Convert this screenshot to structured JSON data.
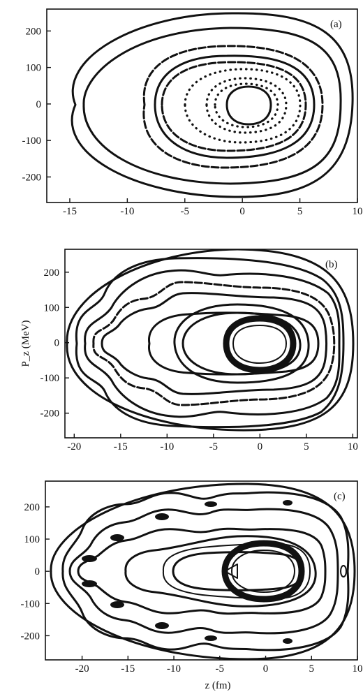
{
  "chart_data": [
    {
      "type": "phase-space contour",
      "panel_label": "(a)",
      "xlim": [
        -17,
        10
      ],
      "ylim": [
        -270,
        260
      ],
      "x_ticks": [
        -15,
        -10,
        -5,
        0,
        5,
        10
      ],
      "y_ticks": [
        200,
        100,
        0,
        -100,
        -200
      ],
      "x_tick_labels": [
        "-15",
        "-10",
        "-5",
        "0",
        "5",
        "10"
      ],
      "y_tick_labels": [
        "200",
        "100",
        "0",
        "-100",
        "-200"
      ],
      "xlabel": "",
      "ylabel": ""
    },
    {
      "type": "phase-space contour",
      "panel_label": "(b)",
      "xlim": [
        -21,
        10.5
      ],
      "ylim": [
        -270,
        265
      ],
      "x_ticks": [
        -20,
        -15,
        -10,
        -5,
        0,
        5,
        10
      ],
      "y_ticks": [
        200,
        100,
        0,
        -100,
        -200
      ],
      "x_tick_labels": [
        "-20",
        "-15",
        "-10",
        "-5",
        "0",
        "5",
        "10"
      ],
      "y_tick_labels": [
        "200",
        "100",
        "0",
        "-100",
        "-200"
      ],
      "xlabel": "",
      "ylabel": "P_z (MeV)"
    },
    {
      "type": "phase-space contour",
      "panel_label": "(c)",
      "xlim": [
        -24,
        10
      ],
      "ylim": [
        -275,
        280
      ],
      "x_ticks": [
        -20,
        -15,
        -10,
        -5,
        0,
        5,
        10
      ],
      "y_ticks": [
        200,
        100,
        0,
        -100,
        -200
      ],
      "x_tick_labels": [
        "-20",
        "-15",
        "-10",
        "-5",
        "0",
        "5",
        "10"
      ],
      "y_tick_labels": [
        "200",
        "100",
        "0",
        "-100",
        "-200"
      ],
      "xlabel": "z (fm)",
      "ylabel": ""
    }
  ]
}
